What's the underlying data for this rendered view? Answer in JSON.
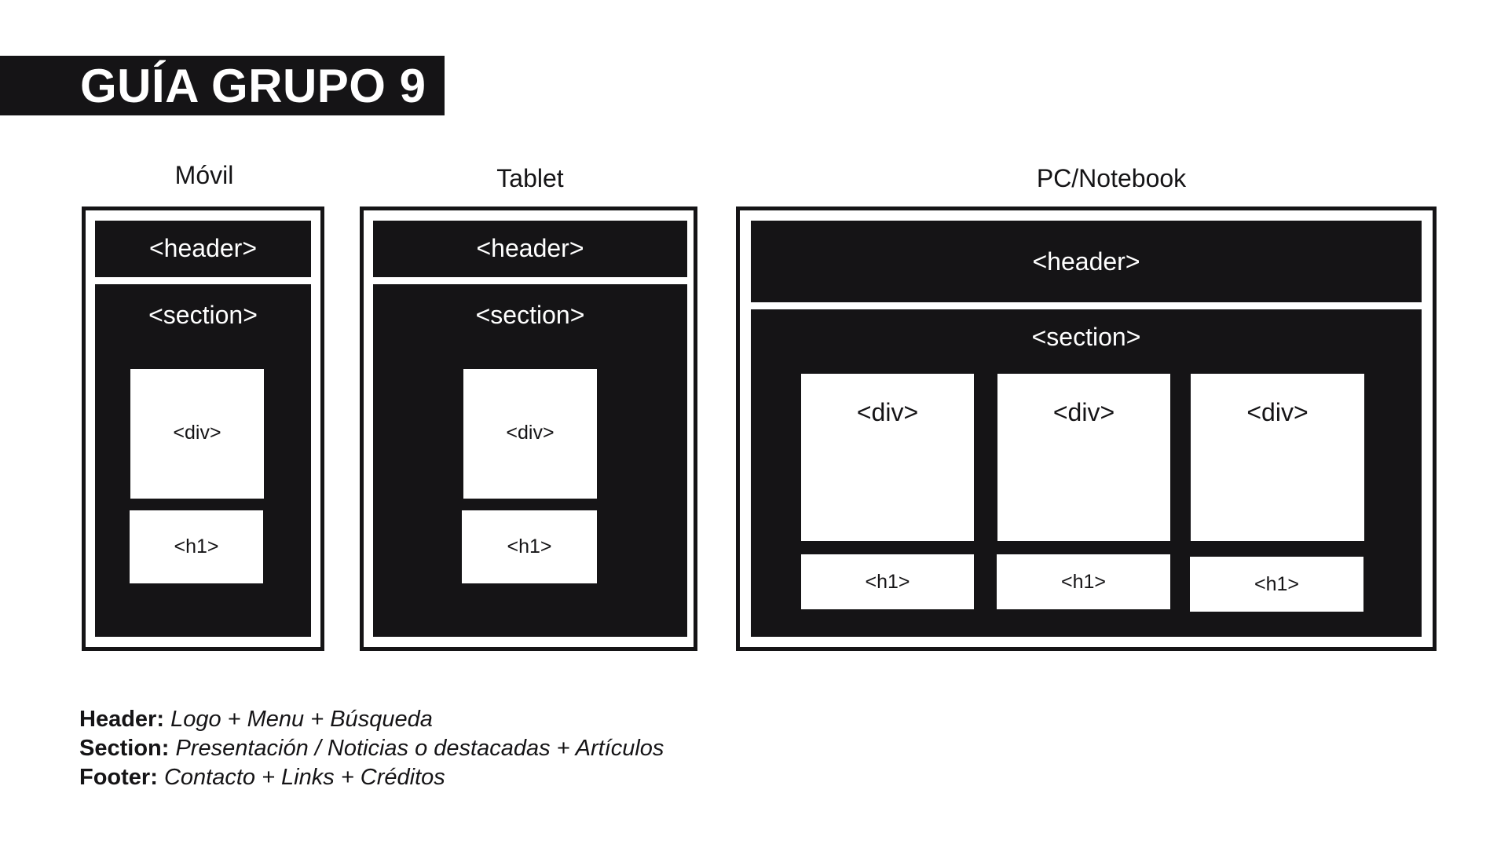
{
  "title": "GUÍA GRUPO 9",
  "devices": {
    "movil": {
      "label": "Móvil",
      "header": "<header>",
      "section": "<section>",
      "div": "<div>",
      "h1": "<h1>"
    },
    "tablet": {
      "label": "Tablet",
      "header": "<header>",
      "section": "<section>",
      "div": "<div>",
      "h1": "<h1>"
    },
    "pc": {
      "label": "PC/Notebook",
      "header": "<header>",
      "section": "<section>",
      "columns": [
        {
          "div": "<div>",
          "h1": "<h1>"
        },
        {
          "div": "<div>",
          "h1": "<h1>"
        },
        {
          "div": "<div>",
          "h1": "<h1>"
        }
      ]
    }
  },
  "legend": [
    {
      "key": "Header:",
      "value": "Logo + Menu + Búsqueda"
    },
    {
      "key": "Section:",
      "value": "Presentación / Noticias o destacadas + Artículos"
    },
    {
      "key": "Footer:",
      "value": "Contacto + Links + Créditos"
    }
  ],
  "colors": {
    "dark": "#151416",
    "light": "#ffffff"
  }
}
